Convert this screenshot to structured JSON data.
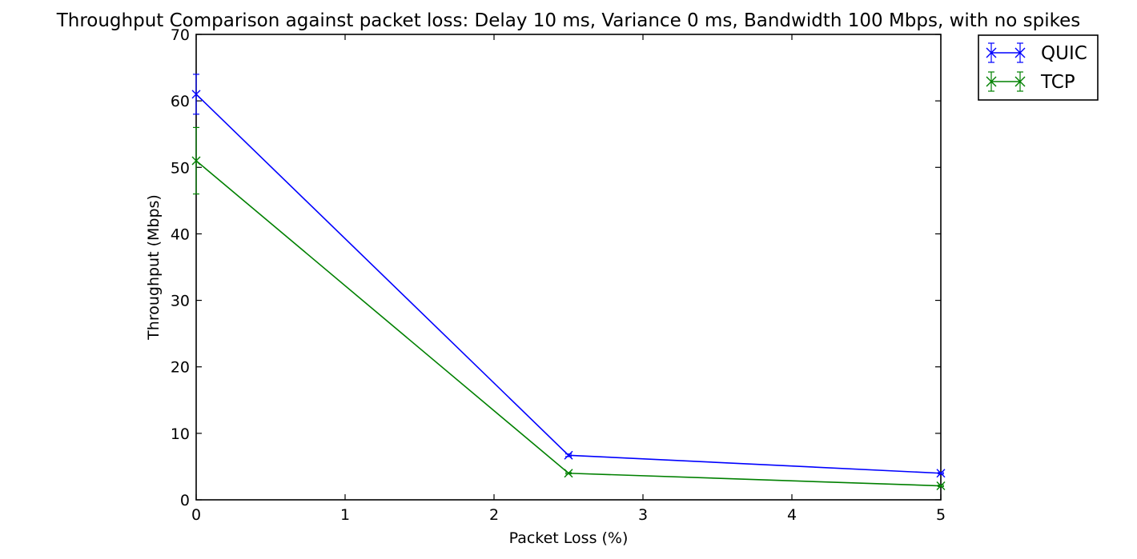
{
  "chart_data": {
    "type": "line",
    "title": "Throughput Comparison against packet loss: Delay 10 ms, Variance 0 ms, Bandwidth 100 Mbps, with no spikes",
    "xlabel": "Packet Loss (%)",
    "ylabel": "Throughput (Mbps)",
    "xlim": [
      0,
      5
    ],
    "ylim": [
      0,
      70
    ],
    "xticks": [
      0,
      1,
      2,
      3,
      4,
      5
    ],
    "yticks": [
      0,
      10,
      20,
      30,
      40,
      50,
      60,
      70
    ],
    "xtick_labels": [
      "0",
      "1",
      "2",
      "3",
      "4",
      "5"
    ],
    "ytick_labels": [
      "0",
      "10",
      "20",
      "30",
      "40",
      "50",
      "60",
      "70"
    ],
    "grid": false,
    "legend_position": "outside-top-right",
    "series": [
      {
        "name": "QUIC",
        "color": "#0000ff",
        "marker": "x",
        "x": [
          0,
          2.5,
          5
        ],
        "y": [
          61,
          6.7,
          4
        ],
        "error": [
          3,
          0.2,
          0.1
        ]
      },
      {
        "name": "TCP",
        "color": "#008000",
        "marker": "x",
        "x": [
          0,
          2.5,
          5
        ],
        "y": [
          51,
          4,
          2.1
        ],
        "error": [
          5,
          0.1,
          0.1
        ]
      }
    ]
  }
}
